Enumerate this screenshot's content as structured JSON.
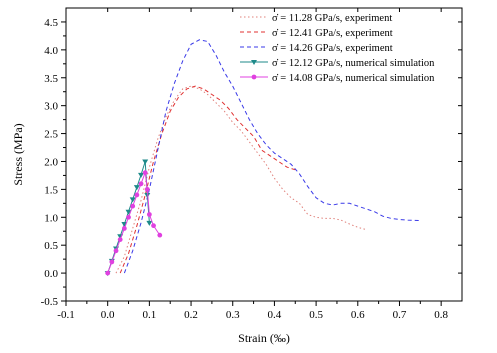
{
  "chart_data": {
    "type": "line",
    "title": "",
    "xlabel": "Strain (‰)",
    "ylabel": "Stress (MPa)",
    "xlim": [
      -0.1,
      0.85
    ],
    "ylim": [
      -0.5,
      4.75
    ],
    "xticks": [
      -0.1,
      0.0,
      0.1,
      0.2,
      0.3,
      0.4,
      0.5,
      0.6,
      0.7,
      0.8
    ],
    "xtick_labels": [
      "-0.1",
      "0.0",
      "0.1",
      "0.2",
      "0.3",
      "0.4",
      "0.5",
      "0.6",
      "0.7",
      "0.8"
    ],
    "yticks": [
      -0.5,
      0.0,
      0.5,
      1.0,
      1.5,
      2.0,
      2.5,
      3.0,
      3.5,
      4.0,
      4.5
    ],
    "ytick_labels": [
      "-0.5",
      "0.0",
      "0.5",
      "1.0",
      "1.5",
      "2.0",
      "2.5",
      "3.0",
      "3.5",
      "4.0",
      "4.5"
    ],
    "grid": false,
    "legend_position": "top-right",
    "series": [
      {
        "name": "σ̇ = 11.28 GPa/s, experiment",
        "color": "#e0807a",
        "style": "dotted",
        "marker": "none",
        "points": [
          [
            0.02,
            0.0
          ],
          [
            0.04,
            0.3
          ],
          [
            0.06,
            0.8
          ],
          [
            0.08,
            1.3
          ],
          [
            0.1,
            1.9
          ],
          [
            0.12,
            2.4
          ],
          [
            0.14,
            2.8
          ],
          [
            0.16,
            3.1
          ],
          [
            0.18,
            3.3
          ],
          [
            0.2,
            3.35
          ],
          [
            0.22,
            3.3
          ],
          [
            0.24,
            3.2
          ],
          [
            0.26,
            3.05
          ],
          [
            0.28,
            2.9
          ],
          [
            0.3,
            2.7
          ],
          [
            0.32,
            2.55
          ],
          [
            0.34,
            2.35
          ],
          [
            0.36,
            2.15
          ],
          [
            0.38,
            1.95
          ],
          [
            0.4,
            1.7
          ],
          [
            0.42,
            1.5
          ],
          [
            0.44,
            1.35
          ],
          [
            0.46,
            1.25
          ],
          [
            0.48,
            1.05
          ],
          [
            0.5,
            1.0
          ],
          [
            0.52,
            0.98
          ],
          [
            0.54,
            0.98
          ],
          [
            0.56,
            0.95
          ],
          [
            0.58,
            0.88
          ],
          [
            0.6,
            0.82
          ],
          [
            0.62,
            0.78
          ]
        ]
      },
      {
        "name": "σ̇ = 12.41 GPa/s, experiment",
        "color": "#e03030",
        "style": "dashed",
        "marker": "none",
        "points": [
          [
            0.03,
            0.0
          ],
          [
            0.05,
            0.35
          ],
          [
            0.07,
            0.85
          ],
          [
            0.09,
            1.4
          ],
          [
            0.11,
            2.0
          ],
          [
            0.13,
            2.5
          ],
          [
            0.15,
            2.9
          ],
          [
            0.17,
            3.15
          ],
          [
            0.19,
            3.3
          ],
          [
            0.21,
            3.35
          ],
          [
            0.23,
            3.3
          ],
          [
            0.25,
            3.2
          ],
          [
            0.27,
            3.1
          ],
          [
            0.29,
            2.95
          ],
          [
            0.31,
            2.75
          ],
          [
            0.33,
            2.6
          ],
          [
            0.35,
            2.45
          ],
          [
            0.37,
            2.2
          ],
          [
            0.39,
            2.1
          ],
          [
            0.41,
            2.0
          ],
          [
            0.43,
            1.9
          ],
          [
            0.45,
            1.85
          ]
        ]
      },
      {
        "name": "σ̇ = 14.26 GPa/s, experiment",
        "color": "#3a3ae8",
        "style": "dashed",
        "marker": "none",
        "points": [
          [
            0.04,
            0.0
          ],
          [
            0.06,
            0.4
          ],
          [
            0.08,
            0.9
          ],
          [
            0.1,
            1.5
          ],
          [
            0.12,
            2.2
          ],
          [
            0.14,
            2.9
          ],
          [
            0.16,
            3.4
          ],
          [
            0.18,
            3.8
          ],
          [
            0.2,
            4.1
          ],
          [
            0.22,
            4.18
          ],
          [
            0.24,
            4.15
          ],
          [
            0.26,
            3.9
          ],
          [
            0.28,
            3.6
          ],
          [
            0.3,
            3.35
          ],
          [
            0.32,
            3.05
          ],
          [
            0.34,
            2.75
          ],
          [
            0.36,
            2.5
          ],
          [
            0.38,
            2.3
          ],
          [
            0.4,
            2.15
          ],
          [
            0.42,
            2.05
          ],
          [
            0.44,
            1.95
          ],
          [
            0.46,
            1.78
          ],
          [
            0.48,
            1.55
          ],
          [
            0.5,
            1.35
          ],
          [
            0.52,
            1.25
          ],
          [
            0.54,
            1.22
          ],
          [
            0.56,
            1.25
          ],
          [
            0.58,
            1.25
          ],
          [
            0.6,
            1.2
          ],
          [
            0.62,
            1.15
          ],
          [
            0.64,
            1.1
          ],
          [
            0.66,
            1.02
          ],
          [
            0.68,
            0.98
          ],
          [
            0.7,
            0.96
          ],
          [
            0.72,
            0.95
          ],
          [
            0.75,
            0.94
          ]
        ]
      },
      {
        "name": "σ̇ = 12.12 GPa/s, numerical simulation",
        "color": "#1e8a8a",
        "style": "solid",
        "marker": "triangle",
        "points": [
          [
            0.0,
            0.0
          ],
          [
            0.01,
            0.22
          ],
          [
            0.02,
            0.44
          ],
          [
            0.03,
            0.66
          ],
          [
            0.04,
            0.88
          ],
          [
            0.05,
            1.1
          ],
          [
            0.06,
            1.32
          ],
          [
            0.07,
            1.54
          ],
          [
            0.08,
            1.76
          ],
          [
            0.09,
            2.0
          ],
          [
            0.095,
            1.4
          ],
          [
            0.1,
            0.9
          ]
        ]
      },
      {
        "name": "σ̇ = 14.08 GPa/s, numerical simulation",
        "color": "#e040e0",
        "style": "solid",
        "marker": "star",
        "points": [
          [
            0.0,
            0.0
          ],
          [
            0.01,
            0.2
          ],
          [
            0.02,
            0.4
          ],
          [
            0.03,
            0.6
          ],
          [
            0.04,
            0.8
          ],
          [
            0.05,
            1.0
          ],
          [
            0.06,
            1.2
          ],
          [
            0.07,
            1.4
          ],
          [
            0.08,
            1.6
          ],
          [
            0.09,
            1.8
          ],
          [
            0.095,
            1.5
          ],
          [
            0.1,
            1.05
          ],
          [
            0.11,
            0.85
          ],
          [
            0.125,
            0.68
          ]
        ]
      }
    ]
  }
}
